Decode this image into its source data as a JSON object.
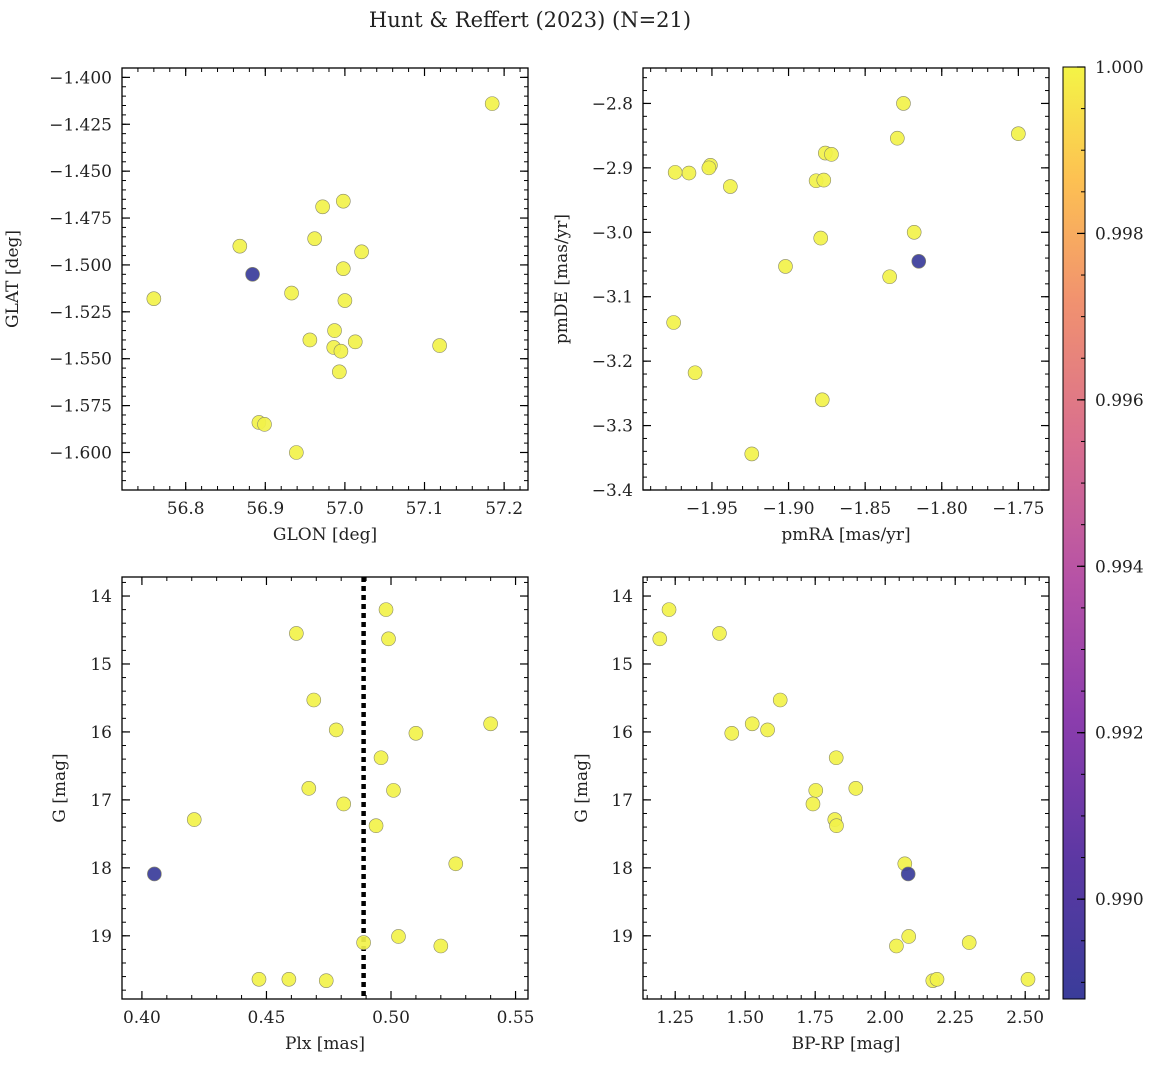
{
  "title": "Hunt & Reffert (2023) (N=21)",
  "colorbar": {
    "range": [
      0.9888,
      1.0
    ],
    "ticks": [
      0.99,
      0.992,
      0.994,
      0.996,
      0.998,
      1.0
    ],
    "tick_labels": [
      "0.990",
      "0.992",
      "0.994",
      "0.996",
      "0.998",
      "1.000"
    ],
    "colormap": "plasma"
  },
  "chart_data": [
    {
      "type": "scatter",
      "xlabel": "GLON [deg]",
      "ylabel": "GLAT [deg]",
      "xlim": [
        56.72,
        57.23
      ],
      "ylim": [
        -1.62,
        -1.395
      ],
      "xticks": [
        56.8,
        56.9,
        57.0,
        57.1,
        57.2
      ],
      "xtick_labels": [
        "56.8",
        "56.9",
        "57.0",
        "57.1",
        "57.2"
      ],
      "yticks": [
        -1.4,
        -1.425,
        -1.45,
        -1.475,
        -1.5,
        -1.525,
        -1.55,
        -1.575,
        -1.6
      ],
      "ytick_labels": [
        "−1.400",
        "−1.425",
        "−1.450",
        "−1.475",
        "−1.500",
        "−1.525",
        "−1.550",
        "−1.575",
        "−1.600"
      ],
      "x": [
        57.185,
        56.998,
        56.972,
        56.962,
        56.868,
        57.021,
        56.998,
        56.884,
        56.933,
        57.0,
        56.76,
        56.987,
        57.013,
        56.956,
        56.986,
        56.995,
        57.119,
        56.993,
        56.892,
        56.899,
        56.939
      ],
      "y": [
        -1.414,
        -1.466,
        -1.469,
        -1.486,
        -1.49,
        -1.493,
        -1.502,
        -1.505,
        -1.515,
        -1.519,
        -1.518,
        -1.535,
        -1.541,
        -1.54,
        -1.544,
        -1.546,
        -1.543,
        -1.557,
        -1.584,
        -1.585,
        -1.6
      ],
      "prob": [
        1,
        1,
        1,
        1,
        1,
        1,
        1,
        0.9888,
        1,
        1,
        1,
        1,
        1,
        1,
        1,
        1,
        1,
        1,
        1,
        1,
        1
      ]
    },
    {
      "type": "scatter",
      "xlabel": "pmRA [mas/yr]",
      "ylabel": "pmDE [mas/yr]",
      "xlim": [
        -1.995,
        -1.73
      ],
      "ylim": [
        -3.4,
        -2.745
      ],
      "xticks": [
        -1.95,
        -1.9,
        -1.85,
        -1.8,
        -1.75
      ],
      "xtick_labels": [
        "−1.95",
        "−1.90",
        "−1.85",
        "−1.80",
        "−1.75"
      ],
      "yticks": [
        -2.8,
        -2.9,
        -3.0,
        -3.1,
        -3.2,
        -3.3,
        -3.4
      ],
      "ytick_labels": [
        "−2.8",
        "−2.9",
        "−3.0",
        "−3.1",
        "−3.2",
        "−3.3",
        "−3.4"
      ],
      "x": [
        -1.825,
        -1.829,
        -1.75,
        -1.876,
        -1.872,
        -1.951,
        -1.952,
        -1.965,
        -1.974,
        -1.938,
        -1.882,
        -1.877,
        -1.818,
        -1.879,
        -1.902,
        -1.834,
        -1.815,
        -1.975,
        -1.961,
        -1.878,
        -1.924
      ],
      "y": [
        -2.8,
        -2.854,
        -2.847,
        -2.877,
        -2.879,
        -2.896,
        -2.9,
        -2.908,
        -2.907,
        -2.929,
        -2.92,
        -2.919,
        -3.0,
        -3.009,
        -3.053,
        -3.069,
        -3.045,
        -3.14,
        -3.218,
        -3.26,
        -3.344
      ],
      "prob": [
        1,
        1,
        1,
        1,
        1,
        1,
        1,
        1,
        1,
        1,
        1,
        1,
        1,
        1,
        1,
        1,
        0.9888,
        1,
        1,
        1,
        1
      ]
    },
    {
      "type": "scatter",
      "xlabel": "Plx [mas]",
      "ylabel": "G [mag]",
      "xlim": [
        0.392,
        0.555
      ],
      "ylim": [
        19.93,
        13.72
      ],
      "xticks": [
        0.4,
        0.45,
        0.5,
        0.55
      ],
      "xtick_labels": [
        "0.40",
        "0.45",
        "0.50",
        "0.55"
      ],
      "yticks": [
        14,
        15,
        16,
        17,
        18,
        19
      ],
      "ytick_labels": [
        "14",
        "15",
        "16",
        "17",
        "18",
        "19"
      ],
      "vline": 0.489,
      "x": [
        0.498,
        0.462,
        0.499,
        0.469,
        0.54,
        0.478,
        0.51,
        0.496,
        0.467,
        0.501,
        0.481,
        0.421,
        0.494,
        0.526,
        0.405,
        0.489,
        0.503,
        0.52,
        0.447,
        0.459,
        0.474
      ],
      "y": [
        14.2,
        14.55,
        14.63,
        15.53,
        15.88,
        15.97,
        16.02,
        16.38,
        16.83,
        16.86,
        17.06,
        17.29,
        17.38,
        17.94,
        18.09,
        19.1,
        19.01,
        19.15,
        19.64,
        19.64,
        19.66
      ],
      "prob": [
        1,
        1,
        1,
        1,
        1,
        1,
        1,
        1,
        1,
        1,
        1,
        1,
        1,
        1,
        0.9888,
        1,
        1,
        1,
        1,
        1,
        1
      ]
    },
    {
      "type": "scatter",
      "xlabel": "BP-RP [mag]",
      "ylabel": "G [mag]",
      "xlim": [
        1.135,
        2.585
      ],
      "ylim": [
        19.93,
        13.72
      ],
      "xticks": [
        1.25,
        1.5,
        1.75,
        2.0,
        2.25,
        2.5
      ],
      "xtick_labels": [
        "1.25",
        "1.50",
        "1.75",
        "2.00",
        "2.25",
        "2.50"
      ],
      "yticks": [
        14,
        15,
        16,
        17,
        18,
        19
      ],
      "ytick_labels": [
        "14",
        "15",
        "16",
        "17",
        "18",
        "19"
      ],
      "x": [
        1.228,
        1.195,
        1.408,
        1.625,
        1.525,
        1.58,
        1.452,
        1.825,
        1.752,
        1.895,
        1.742,
        1.82,
        1.826,
        2.07,
        2.082,
        2.084,
        2.3,
        2.04,
        2.51,
        2.17,
        2.185
      ],
      "y": [
        14.2,
        14.63,
        14.55,
        15.53,
        15.88,
        15.97,
        16.02,
        16.38,
        16.86,
        16.83,
        17.06,
        17.29,
        17.38,
        17.94,
        18.09,
        19.01,
        19.1,
        19.15,
        19.64,
        19.66,
        19.64
      ],
      "prob": [
        1,
        1,
        1,
        1,
        1,
        1,
        1,
        1,
        1,
        1,
        1,
        1,
        1,
        1,
        0.9888,
        1,
        1,
        1,
        1,
        1,
        1
      ]
    }
  ]
}
